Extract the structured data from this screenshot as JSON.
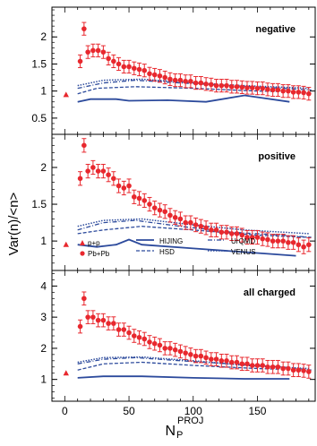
{
  "chart_data": {
    "type": "scatter",
    "xlabel": "N",
    "xlabel_sub": "P",
    "xlabel_sup": "PROJ",
    "ylabel": "Var(n)/<n>",
    "xlim": [
      -10,
      195
    ],
    "x_ticks": [
      "0",
      "50",
      "100",
      "150"
    ],
    "x_tick_values": [
      0,
      50,
      100,
      150
    ],
    "colors": {
      "pp": "#e8282e",
      "pbpb": "#e8282e",
      "error_bar": "#e8282e",
      "hijing": "#2c4a9c",
      "hsd": "#2c4a9c",
      "urqmd": "#2c4a9c",
      "venus": "#2c4a9c",
      "axes": "#000000"
    },
    "legend": {
      "placement": "middle-panel-bottom",
      "entries": [
        {
          "key": "pp",
          "label": "p+p",
          "marker": "triangle"
        },
        {
          "key": "pbpb",
          "label": "Pb+Pb",
          "marker": "circle"
        },
        {
          "key": "hijing",
          "label": "HIJING",
          "style": "solid"
        },
        {
          "key": "hsd",
          "label": "HSD",
          "style": "dashed"
        },
        {
          "key": "urqmd",
          "label": "UrQMD",
          "style": "dash-dot"
        },
        {
          "key": "venus",
          "label": "VENUS",
          "style": "dotted"
        }
      ]
    },
    "panels": [
      {
        "label": "negative",
        "ylim": [
          0.2,
          2.55
        ],
        "y_ticks": [
          "0.5",
          "1",
          "1.5",
          "2"
        ],
        "y_tick_values": [
          0.5,
          1,
          1.5,
          2
        ],
        "pp": [
          {
            "x": 1,
            "y": 0.93
          }
        ],
        "pbpb_x": [
          12,
          15,
          18,
          22,
          26,
          30,
          34,
          38,
          42,
          46,
          50,
          54,
          58,
          62,
          66,
          70,
          74,
          78,
          82,
          86,
          90,
          94,
          98,
          102,
          106,
          110,
          114,
          118,
          122,
          126,
          130,
          134,
          138,
          142,
          146,
          150,
          154,
          158,
          162,
          166,
          170,
          174,
          178,
          182,
          186,
          190
        ],
        "pbpb_y": [
          1.55,
          2.15,
          1.72,
          1.75,
          1.75,
          1.72,
          1.6,
          1.55,
          1.5,
          1.45,
          1.45,
          1.42,
          1.4,
          1.38,
          1.32,
          1.3,
          1.28,
          1.25,
          1.22,
          1.2,
          1.2,
          1.18,
          1.18,
          1.15,
          1.15,
          1.13,
          1.12,
          1.1,
          1.1,
          1.1,
          1.08,
          1.08,
          1.07,
          1.06,
          1.06,
          1.05,
          1.05,
          1.03,
          1.02,
          1.02,
          1.0,
          1.0,
          0.98,
          0.98,
          0.97,
          0.95
        ],
        "hijing": [
          [
            10,
            0.8
          ],
          [
            20,
            0.85
          ],
          [
            40,
            0.85
          ],
          [
            50,
            0.82
          ],
          [
            80,
            0.83
          ],
          [
            110,
            0.8
          ],
          [
            140,
            0.92
          ],
          [
            175,
            0.8
          ]
        ],
        "hsd": [
          [
            10,
            0.95
          ],
          [
            25,
            1.05
          ],
          [
            55,
            1.08
          ],
          [
            100,
            1.05
          ],
          [
            150,
            1.0
          ],
          [
            190,
            0.98
          ]
        ],
        "urqmd": [
          [
            10,
            1.05
          ],
          [
            30,
            1.15
          ],
          [
            55,
            1.2
          ],
          [
            90,
            1.15
          ],
          [
            130,
            1.1
          ],
          [
            170,
            1.05
          ],
          [
            192,
            1.02
          ]
        ],
        "venus": [
          [
            10,
            1.1
          ],
          [
            30,
            1.2
          ],
          [
            60,
            1.22
          ],
          [
            100,
            1.15
          ],
          [
            140,
            1.1
          ],
          [
            190,
            1.05
          ]
        ]
      },
      {
        "label": "positive",
        "ylim": [
          0.6,
          2.45
        ],
        "y_ticks": [
          "1",
          "1.5",
          "2"
        ],
        "y_tick_values": [
          1,
          1.5,
          2
        ],
        "pp": [
          {
            "x": 1,
            "y": 0.95
          }
        ],
        "pbpb_x": [
          12,
          15,
          18,
          22,
          26,
          30,
          34,
          38,
          42,
          46,
          50,
          54,
          58,
          62,
          66,
          70,
          74,
          78,
          82,
          86,
          90,
          94,
          98,
          102,
          106,
          110,
          114,
          118,
          122,
          126,
          130,
          134,
          138,
          142,
          146,
          150,
          154,
          158,
          162,
          166,
          170,
          174,
          178,
          182,
          186,
          190
        ],
        "pbpb_y": [
          1.85,
          2.3,
          1.95,
          2.0,
          1.95,
          1.95,
          1.9,
          1.85,
          1.75,
          1.72,
          1.75,
          1.6,
          1.58,
          1.55,
          1.5,
          1.45,
          1.42,
          1.4,
          1.35,
          1.32,
          1.3,
          1.25,
          1.25,
          1.22,
          1.2,
          1.18,
          1.15,
          1.15,
          1.12,
          1.12,
          1.1,
          1.1,
          1.08,
          1.05,
          1.05,
          1.05,
          1.03,
          1.02,
          1.0,
          1.0,
          1.0,
          0.98,
          0.98,
          0.95,
          0.92,
          0.95
        ],
        "hijing": [
          [
            10,
            0.95
          ],
          [
            25,
            0.92
          ],
          [
            40,
            0.95
          ],
          [
            50,
            1.02
          ],
          [
            60,
            0.95
          ],
          [
            100,
            0.9
          ],
          [
            140,
            0.85
          ],
          [
            180,
            0.8
          ]
        ],
        "hsd": [
          [
            10,
            1.1
          ],
          [
            30,
            1.15
          ],
          [
            60,
            1.2
          ],
          [
            100,
            1.15
          ],
          [
            150,
            1.08
          ],
          [
            190,
            1.05
          ]
        ],
        "urqmd": [
          [
            10,
            1.15
          ],
          [
            30,
            1.25
          ],
          [
            55,
            1.28
          ],
          [
            90,
            1.2
          ],
          [
            130,
            1.12
          ],
          [
            170,
            1.08
          ],
          [
            192,
            1.05
          ]
        ],
        "venus": [
          [
            10,
            1.2
          ],
          [
            30,
            1.28
          ],
          [
            60,
            1.3
          ],
          [
            100,
            1.22
          ],
          [
            140,
            1.15
          ],
          [
            190,
            1.1
          ]
        ]
      },
      {
        "label": "all charged",
        "ylim": [
          0.3,
          4.5
        ],
        "y_ticks": [
          "1",
          "2",
          "3",
          "4"
        ],
        "y_tick_values": [
          1,
          2,
          3,
          4
        ],
        "pp": [
          {
            "x": 1,
            "y": 1.2
          }
        ],
        "pbpb_x": [
          12,
          15,
          18,
          22,
          26,
          30,
          34,
          38,
          42,
          46,
          50,
          54,
          58,
          62,
          66,
          70,
          74,
          78,
          82,
          86,
          90,
          94,
          98,
          102,
          106,
          110,
          114,
          118,
          122,
          126,
          130,
          134,
          138,
          142,
          146,
          150,
          154,
          158,
          162,
          166,
          170,
          174,
          178,
          182,
          186,
          190
        ],
        "pbpb_y": [
          2.7,
          3.6,
          3.0,
          3.0,
          2.9,
          2.9,
          2.8,
          2.8,
          2.6,
          2.6,
          2.5,
          2.4,
          2.35,
          2.3,
          2.2,
          2.15,
          2.1,
          2.0,
          2.0,
          1.95,
          1.9,
          1.85,
          1.8,
          1.75,
          1.75,
          1.7,
          1.65,
          1.65,
          1.6,
          1.6,
          1.55,
          1.55,
          1.5,
          1.5,
          1.45,
          1.45,
          1.45,
          1.4,
          1.4,
          1.4,
          1.35,
          1.35,
          1.3,
          1.3,
          1.28,
          1.25
        ],
        "hijing": [
          [
            10,
            1.05
          ],
          [
            30,
            1.1
          ],
          [
            60,
            1.1
          ],
          [
            100,
            1.05
          ],
          [
            140,
            1.02
          ],
          [
            175,
            1.02
          ]
        ],
        "hsd": [
          [
            10,
            1.3
          ],
          [
            30,
            1.5
          ],
          [
            60,
            1.55
          ],
          [
            100,
            1.45
          ],
          [
            150,
            1.35
          ],
          [
            190,
            1.3
          ]
        ],
        "urqmd": [
          [
            10,
            1.5
          ],
          [
            30,
            1.65
          ],
          [
            55,
            1.7
          ],
          [
            90,
            1.6
          ],
          [
            130,
            1.5
          ],
          [
            170,
            1.4
          ],
          [
            192,
            1.3
          ]
        ],
        "venus": [
          [
            10,
            1.55
          ],
          [
            30,
            1.7
          ],
          [
            60,
            1.72
          ],
          [
            100,
            1.6
          ],
          [
            140,
            1.45
          ],
          [
            190,
            1.35
          ]
        ]
      }
    ]
  }
}
